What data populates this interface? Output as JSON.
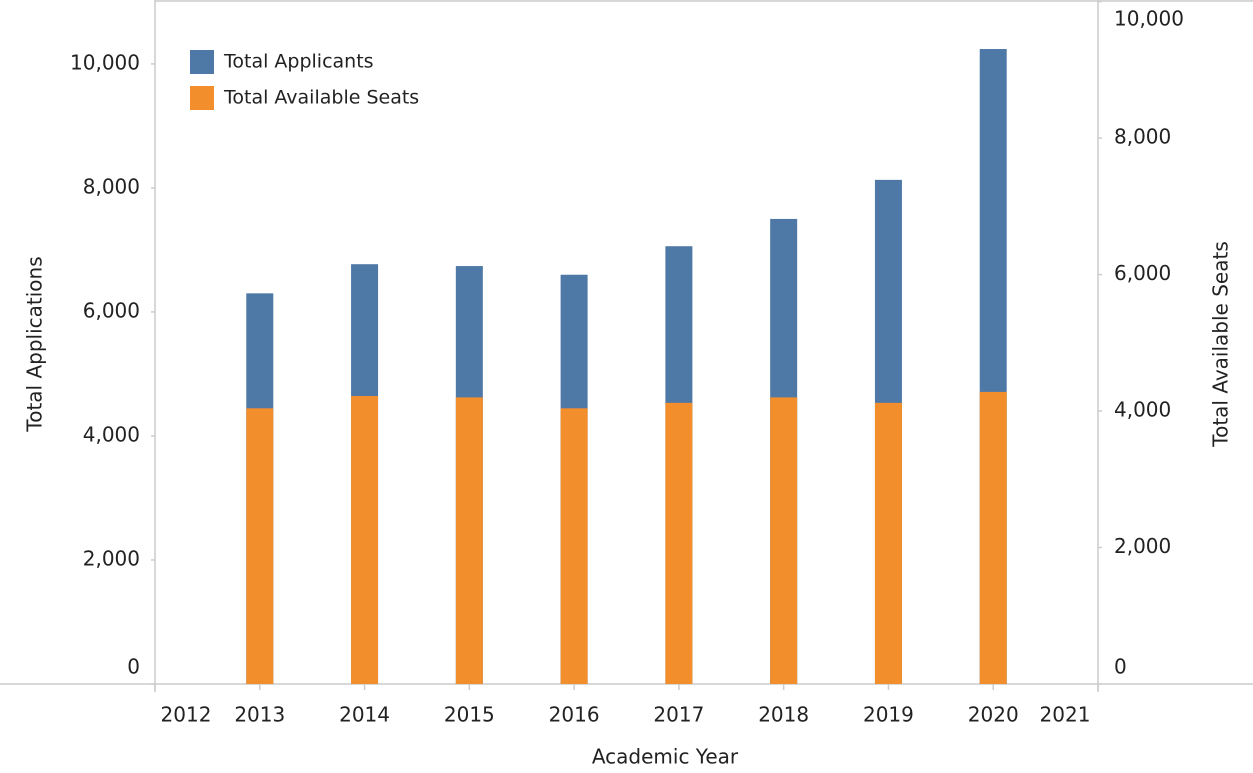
{
  "chart_data": {
    "type": "bar",
    "x": [
      2013,
      2014,
      2015,
      2016,
      2017,
      2018,
      2019,
      2020
    ],
    "xlim": [
      2012,
      2021
    ],
    "xticks": [
      2012,
      2013,
      2014,
      2015,
      2016,
      2017,
      2018,
      2019,
      2020,
      2021
    ],
    "xlabel": "Academic Year",
    "ylabel": "Total Applications",
    "y2label": "Total Available Seats",
    "ylim": [
      0,
      10950
    ],
    "yticks": [
      0,
      {
        "value": 2000,
        "label": "2,000"
      },
      {
        "value": 4000,
        "label": "4,000"
      },
      {
        "value": 6000,
        "label": "6,000"
      },
      {
        "value": 8000,
        "label": "8,000"
      },
      {
        "value": 10000,
        "label": "10,000"
      }
    ],
    "y2lim": [
      0,
      9950
    ],
    "y2ticks": [
      0,
      {
        "value": 2000,
        "label": "2,000"
      },
      {
        "value": 4000,
        "label": "4,000"
      },
      {
        "value": 6000,
        "label": "6,000"
      },
      {
        "value": 8000,
        "label": "8,000"
      },
      {
        "value": 10000,
        "label": "10,000"
      }
    ],
    "legend": "upper left",
    "series": [
      {
        "name": "Total Applicants",
        "color": "#4e79a7",
        "values": [
          6300,
          6770,
          6740,
          6600,
          7060,
          7500,
          8130,
          10240
        ]
      },
      {
        "name": "Total Available Seats",
        "color": "#f28e2b",
        "axis": "y2",
        "values": [
          4040,
          4220,
          4200,
          4040,
          4120,
          4200,
          4120,
          4280
        ]
      }
    ]
  }
}
